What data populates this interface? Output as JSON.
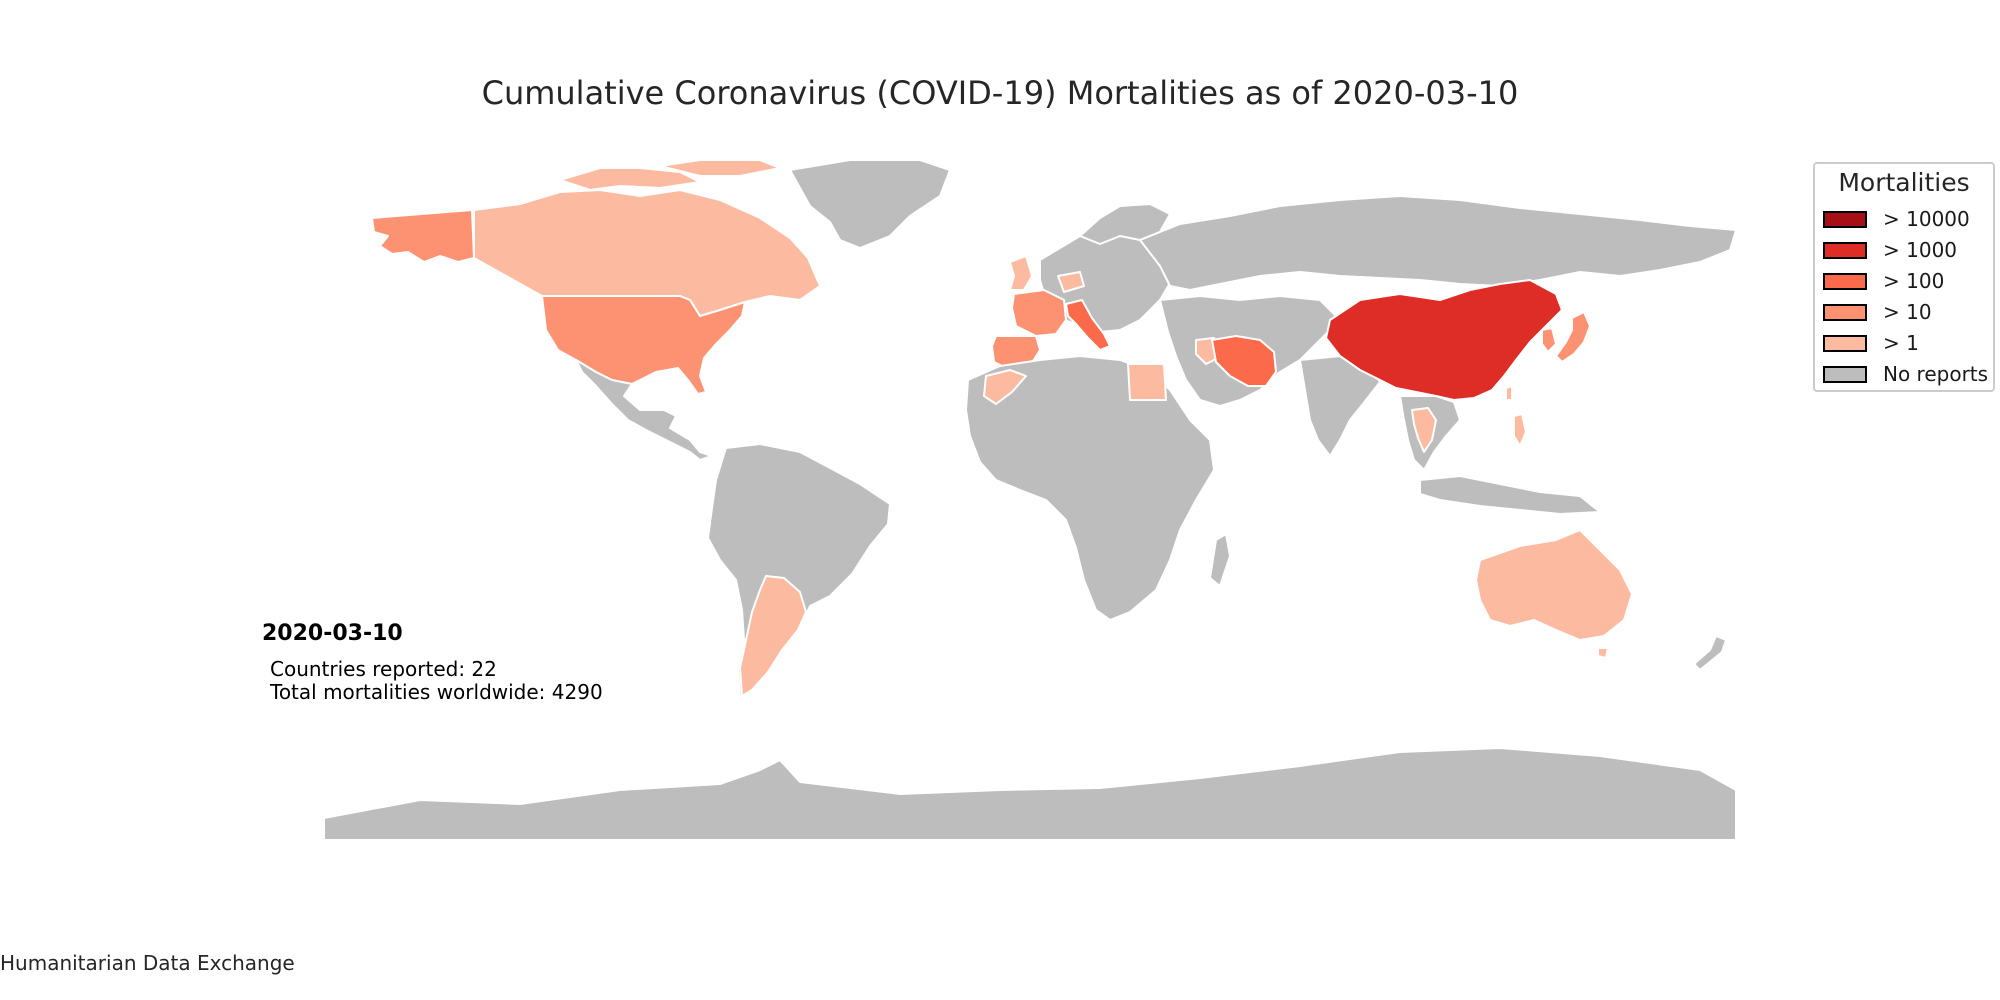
{
  "title": "Cumulative Coronavirus (COVID-19) Mortalities as of 2020-03-10",
  "colors": {
    "background": "#ffffff",
    "no_reports": "#bdbdbd",
    "border": "#ffffff",
    "gt_10000": "#a50f15",
    "gt_1000": "#de2d26",
    "gt_100": "#fb6a4a",
    "gt_10": "#fc9272",
    "gt_1": "#fcbba1"
  },
  "legend": {
    "title": "Mortalities",
    "items": [
      {
        "label": "> 10000",
        "color": "#a50f15"
      },
      {
        "label": "> 1000",
        "color": "#de2d26"
      },
      {
        "label": "> 100",
        "color": "#fb6a4a"
      },
      {
        "label": "> 10",
        "color": "#fc9272"
      },
      {
        "label": "> 1",
        "color": "#fcbba1"
      },
      {
        "label": "No reports",
        "color": "#bdbdbd"
      }
    ]
  },
  "stats": {
    "date": "2020-03-10",
    "countries_reported": "Countries reported: 22",
    "total_mortalities": "Total mortalities worldwide: 4290"
  },
  "source": "Humanitarian Data Exchange",
  "map_data": {
    "highlighted_regions": [
      {
        "region": "China",
        "category": "> 1000"
      },
      {
        "region": "Italy",
        "category": "> 100"
      },
      {
        "region": "Iran",
        "category": "> 100"
      },
      {
        "region": "France",
        "category": "> 10"
      },
      {
        "region": "Spain",
        "category": "> 10"
      },
      {
        "region": "United States",
        "category": "> 10"
      },
      {
        "region": "Japan",
        "category": "> 10"
      },
      {
        "region": "South Korea",
        "category": "> 10"
      },
      {
        "region": "Canada",
        "category": "> 1"
      },
      {
        "region": "Argentina",
        "category": "> 1"
      },
      {
        "region": "Australia",
        "category": "> 1"
      },
      {
        "region": "Egypt",
        "category": "> 1"
      },
      {
        "region": "Morocco",
        "category": "> 1"
      },
      {
        "region": "United Kingdom",
        "category": "> 1"
      },
      {
        "region": "Switzerland",
        "category": "> 1"
      },
      {
        "region": "Iraq",
        "category": "> 1"
      },
      {
        "region": "Thailand",
        "category": "> 1"
      },
      {
        "region": "Philippines",
        "category": "> 1"
      },
      {
        "region": "Taiwan",
        "category": "> 1"
      }
    ]
  }
}
